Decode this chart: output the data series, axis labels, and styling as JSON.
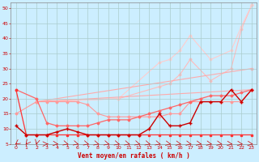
{
  "xlabel": "Vent moyen/en rafales ( km/h )",
  "bg_color": "#cceeff",
  "grid_color": "#aacccc",
  "xlim": [
    -0.5,
    23.5
  ],
  "ylim": [
    5,
    52
  ],
  "yticks": [
    5,
    10,
    15,
    20,
    25,
    30,
    35,
    40,
    45,
    50
  ],
  "xticks": [
    0,
    1,
    2,
    3,
    4,
    5,
    6,
    7,
    8,
    9,
    10,
    11,
    12,
    13,
    14,
    15,
    16,
    17,
    18,
    19,
    20,
    21,
    22,
    23
  ],
  "series": [
    {
      "x": [
        0,
        1,
        2,
        3,
        4,
        5,
        6,
        7,
        8,
        9,
        10,
        11,
        12,
        13,
        14,
        15,
        16,
        17,
        18,
        19,
        20,
        21,
        22,
        23
      ],
      "y": [
        23,
        8,
        8,
        8,
        8,
        8,
        8,
        8,
        8,
        8,
        8,
        8,
        8,
        8,
        8,
        8,
        8,
        8,
        8,
        8,
        8,
        8,
        8,
        8
      ],
      "color": "#ff3333",
      "lw": 0.9,
      "marker": "s",
      "ms": 1.5,
      "zorder": 3
    },
    {
      "x": [
        0,
        1,
        2,
        3,
        4,
        5,
        6,
        7,
        8,
        9,
        10,
        11,
        12,
        13,
        14,
        15,
        16,
        17,
        18,
        19,
        20,
        21,
        22,
        23
      ],
      "y": [
        11,
        8,
        8,
        8,
        9,
        10,
        9,
        8,
        8,
        8,
        8,
        8,
        8,
        10,
        15,
        11,
        11,
        12,
        19,
        19,
        19,
        23,
        19,
        23
      ],
      "color": "#cc0000",
      "lw": 1.0,
      "marker": "+",
      "ms": 3,
      "zorder": 4
    },
    {
      "x": [
        0,
        2,
        3,
        4,
        5,
        6,
        7,
        8,
        9,
        10,
        11,
        12,
        13,
        14,
        15,
        16,
        17,
        18,
        19,
        20,
        21,
        22,
        23
      ],
      "y": [
        15,
        19,
        19,
        19,
        19,
        19,
        18,
        15,
        14,
        14,
        14,
        14,
        14,
        14,
        15,
        15,
        19,
        19,
        19,
        19,
        19,
        19,
        23
      ],
      "color": "#ff9999",
      "lw": 0.8,
      "marker": "D",
      "ms": 1.5,
      "zorder": 2
    },
    {
      "x": [
        0,
        2,
        3,
        4,
        5,
        6,
        7,
        8,
        9,
        10,
        11,
        12,
        13,
        14,
        15,
        16,
        17,
        18,
        19,
        20,
        21,
        22,
        23
      ],
      "y": [
        23,
        20,
        12,
        11,
        11,
        11,
        11,
        12,
        13,
        13,
        13,
        14,
        15,
        16,
        17,
        18,
        19,
        20,
        21,
        21,
        21,
        22,
        23
      ],
      "color": "#ff6666",
      "lw": 0.9,
      "marker": "D",
      "ms": 1.5,
      "zorder": 2
    },
    {
      "x": [
        2,
        10,
        14,
        15,
        16,
        17,
        19,
        21,
        22,
        23
      ],
      "y": [
        19,
        20,
        24,
        25,
        28,
        33,
        26,
        30,
        43,
        51
      ],
      "color": "#ffbbbb",
      "lw": 0.8,
      "marker": "D",
      "ms": 1.5,
      "zorder": 1
    },
    {
      "x": [
        2,
        10,
        14,
        15,
        16,
        17,
        19,
        21,
        22,
        23
      ],
      "y": [
        19,
        20,
        32,
        33,
        36,
        41,
        33,
        36,
        44,
        51
      ],
      "color": "#ffcccc",
      "lw": 0.8,
      "marker": "D",
      "ms": 1.5,
      "zorder": 1
    },
    {
      "x": [
        2,
        23
      ],
      "y": [
        19,
        30
      ],
      "color": "#ffaaaa",
      "lw": 0.8,
      "marker": "D",
      "ms": 1.5,
      "zorder": 1
    },
    {
      "x": [
        2,
        23
      ],
      "y": [
        19,
        23
      ],
      "color": "#ffaaaa",
      "lw": 0.8,
      "marker": "D",
      "ms": 1.5,
      "zorder": 1
    }
  ],
  "arrows": {
    "angles": [
      -45,
      -30,
      -10,
      90,
      80,
      70,
      70,
      70,
      70,
      70,
      70,
      70,
      70,
      70,
      70,
      75,
      75,
      75,
      75,
      75,
      75,
      80,
      80,
      80
    ],
    "color": "#cc0000"
  }
}
